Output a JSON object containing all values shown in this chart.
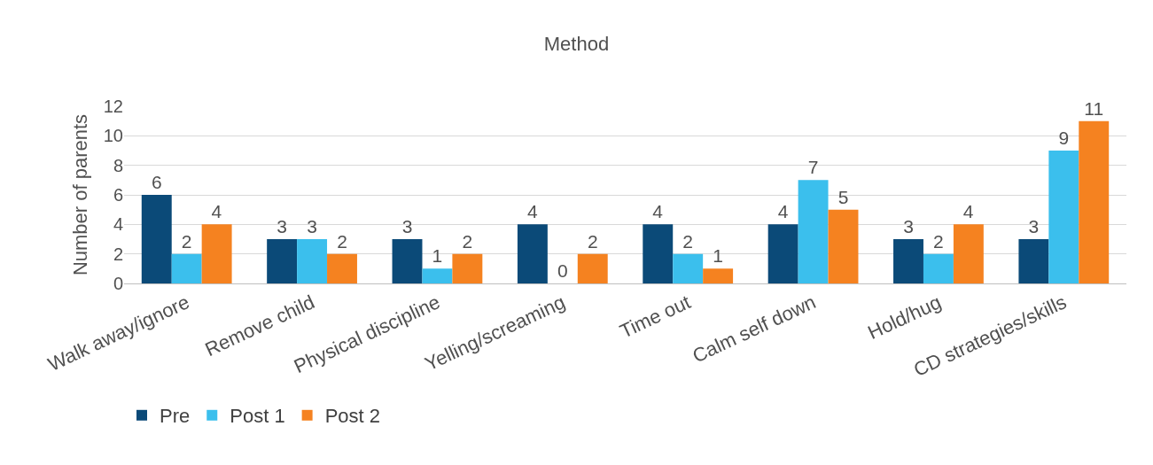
{
  "chart_data": {
    "type": "bar",
    "title": "Method",
    "ylabel": "Number of parents",
    "categories": [
      "Walk away/ignore",
      "Remove child",
      "Physical discipline",
      "Yelling/screaming",
      "Time out",
      "Calm self down",
      "Hold/hug",
      "CD strategies/skills"
    ],
    "series": [
      {
        "name": "Pre",
        "color": "#0b4a78",
        "values": [
          6,
          3,
          3,
          4,
          4,
          4,
          3,
          3
        ]
      },
      {
        "name": "Post 1",
        "color": "#3bbfed",
        "values": [
          2,
          3,
          1,
          0,
          2,
          7,
          2,
          9
        ]
      },
      {
        "name": "Post 2",
        "color": "#f58220",
        "values": [
          4,
          2,
          2,
          2,
          1,
          5,
          4,
          11
        ]
      }
    ],
    "ylim": [
      0,
      12
    ],
    "yticks": [
      0,
      2,
      4,
      6,
      8,
      10,
      12
    ],
    "grid": "y",
    "legend": "bottom left",
    "data_labels": true
  }
}
